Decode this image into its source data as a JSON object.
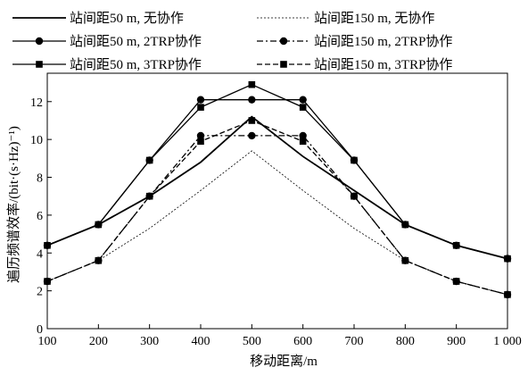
{
  "chart_data": {
    "type": "line",
    "xlabel": "移动距离/m",
    "ylabel": "遍历频谱效率/(bit·(s·Hz)⁻¹)",
    "x": [
      100,
      200,
      300,
      400,
      500,
      600,
      700,
      800,
      900,
      1000
    ],
    "x_tick_labels": [
      "100",
      "200",
      "300",
      "400",
      "500",
      "600",
      "700",
      "800",
      "900",
      "1 000"
    ],
    "xlim": [
      100,
      1000
    ],
    "ylim": [
      0,
      13.5
    ],
    "y_ticks": [
      0,
      2,
      4,
      6,
      8,
      10,
      12
    ],
    "y_tick_labels": [
      "0",
      "2",
      "4",
      "6",
      "8",
      "10",
      "12"
    ],
    "grid": false,
    "legend_position": "top",
    "series": [
      {
        "name": "站间距50 m, 无协作",
        "line": "solid",
        "marker": "none",
        "weight": "thick",
        "values": [
          4.4,
          5.5,
          7.0,
          8.8,
          11.2,
          9.1,
          7.3,
          5.5,
          4.4,
          3.7
        ]
      },
      {
        "name": "站间距150 m, 无协作",
        "line": "dotted",
        "marker": "none",
        "weight": "thin",
        "values": [
          2.5,
          3.6,
          5.3,
          7.3,
          9.4,
          7.3,
          5.3,
          3.6,
          2.5,
          1.8
        ]
      },
      {
        "name": "站间距50 m, 2TRP协作",
        "line": "solid",
        "marker": "circle",
        "weight": "normal",
        "values": [
          4.4,
          5.5,
          8.9,
          12.1,
          12.1,
          12.1,
          8.9,
          5.5,
          4.4,
          3.7
        ]
      },
      {
        "name": "站间距150 m, 2TRP协作",
        "line": "dashdot",
        "marker": "circle",
        "weight": "normal",
        "values": [
          2.5,
          3.6,
          7.0,
          10.2,
          10.2,
          10.2,
          7.0,
          3.6,
          2.5,
          1.8
        ]
      },
      {
        "name": "站间距50 m, 3TRP协作",
        "line": "solid",
        "marker": "square",
        "weight": "normal",
        "values": [
          4.4,
          5.5,
          8.9,
          11.7,
          12.9,
          11.7,
          8.9,
          5.5,
          4.4,
          3.7
        ]
      },
      {
        "name": "站间距150 m, 3TRP协作",
        "line": "dashed",
        "marker": "square",
        "weight": "normal",
        "values": [
          2.5,
          3.6,
          7.0,
          9.9,
          11.0,
          9.9,
          7.0,
          3.6,
          2.5,
          1.8
        ]
      }
    ]
  }
}
